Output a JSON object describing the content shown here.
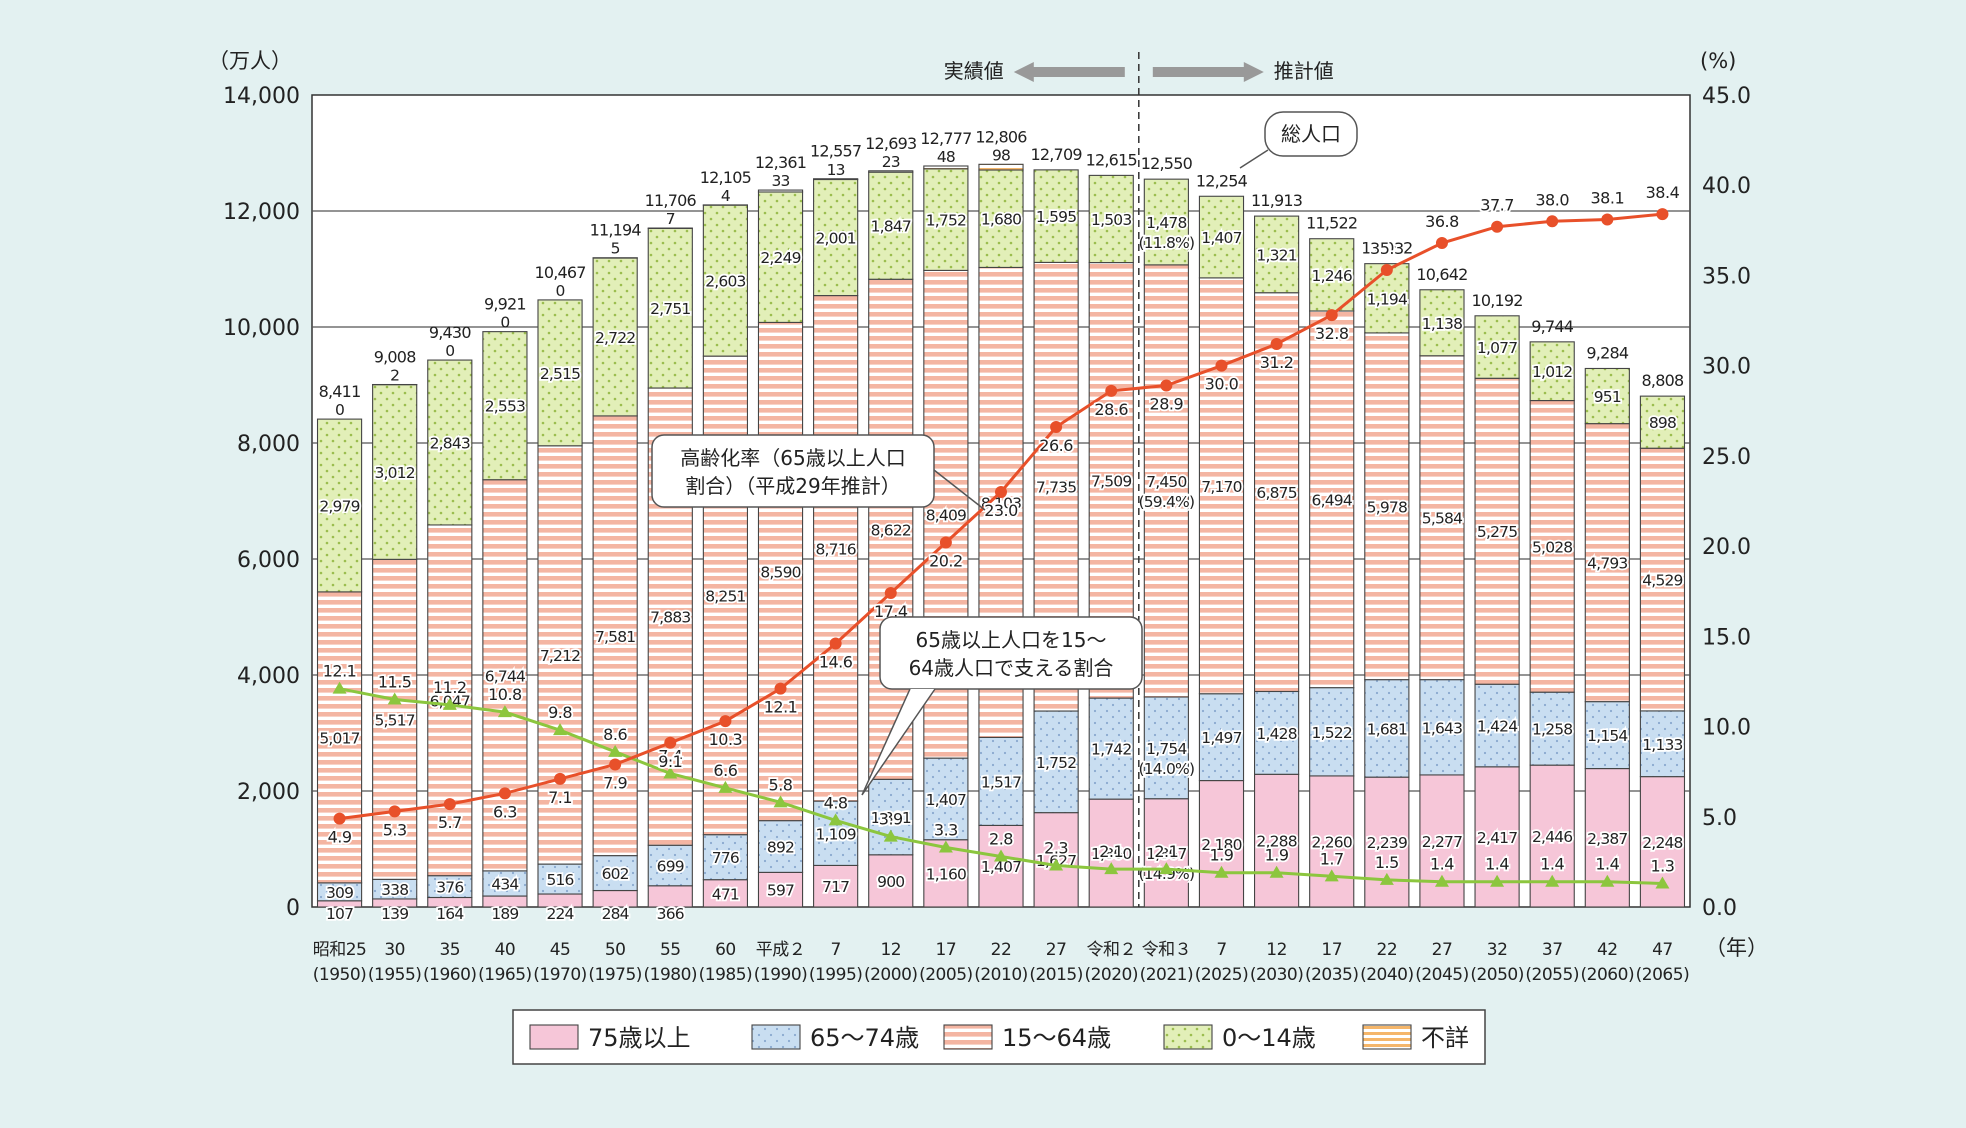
{
  "chart_data": {
    "type": "bar",
    "stacked": true,
    "title": "",
    "y_left": {
      "unit": "（万人）",
      "min": 0,
      "max": 14000,
      "ticks": [
        "0",
        "2,000",
        "4,000",
        "6,000",
        "8,000",
        "10,000",
        "12,000",
        "14,000"
      ]
    },
    "y_right": {
      "unit": "(%)",
      "min": 0,
      "max": 45,
      "ticks": [
        "0.0",
        "5.0",
        "10.0",
        "15.0",
        "20.0",
        "25.0",
        "30.0",
        "35.0",
        "40.0",
        "45.0"
      ]
    },
    "x_unit": "（年）",
    "categories": [
      {
        "era": "昭和25",
        "year": "(1950)"
      },
      {
        "era": "30",
        "year": "(1955)"
      },
      {
        "era": "35",
        "year": "(1960)"
      },
      {
        "era": "40",
        "year": "(1965)"
      },
      {
        "era": "45",
        "year": "(1970)"
      },
      {
        "era": "50",
        "year": "(1975)"
      },
      {
        "era": "55",
        "year": "(1980)"
      },
      {
        "era": "60",
        "year": "(1985)"
      },
      {
        "era": "平成２",
        "year": "(1990)"
      },
      {
        "era": "7",
        "year": "(1995)"
      },
      {
        "era": "12",
        "year": "(2000)"
      },
      {
        "era": "17",
        "year": "(2005)"
      },
      {
        "era": "22",
        "year": "(2010)"
      },
      {
        "era": "27",
        "year": "(2015)"
      },
      {
        "era": "令和２",
        "year": "(2020)"
      },
      {
        "era": "令和３",
        "year": "(2021)"
      },
      {
        "era": "7",
        "year": "(2025)"
      },
      {
        "era": "12",
        "year": "(2030)"
      },
      {
        "era": "17",
        "year": "(2035)"
      },
      {
        "era": "22",
        "year": "(2040)"
      },
      {
        "era": "27",
        "year": "(2045)"
      },
      {
        "era": "32",
        "year": "(2050)"
      },
      {
        "era": "37",
        "year": "(2055)"
      },
      {
        "era": "42",
        "year": "(2060)"
      },
      {
        "era": "47",
        "year": "(2065)"
      }
    ],
    "series": [
      {
        "key": "s75",
        "name": "75歳以上",
        "color": "#f6c6d8",
        "values": [
          107,
          139,
          164,
          189,
          224,
          284,
          366,
          471,
          597,
          717,
          900,
          1160,
          1407,
          1627,
          1860,
          1867,
          2180,
          2288,
          2260,
          2239,
          2277,
          2417,
          2446,
          2387,
          2248
        ],
        "labels": [
          "107",
          "139",
          "164",
          "189",
          "224",
          "284",
          "366",
          "471",
          "597",
          "717",
          "900",
          "1,160",
          "1,407",
          "1,627",
          "1,860",
          "1,867",
          "2,180",
          "2,288",
          "2,260",
          "2,239",
          "2,277",
          "2,417",
          "2,446",
          "2,387",
          "2,248"
        ],
        "sublabels": {
          "15": "(14.9%)"
        }
      },
      {
        "key": "s65",
        "name": "65～74歳",
        "color": "#c9def1",
        "values": [
          309,
          338,
          376,
          434,
          516,
          602,
          699,
          776,
          892,
          1109,
          1301,
          1407,
          1517,
          1752,
          1742,
          1754,
          1497,
          1428,
          1522,
          1681,
          1643,
          1424,
          1258,
          1154,
          1133
        ],
        "labels": [
          "309",
          "338",
          "376",
          "434",
          "516",
          "602",
          "699",
          "776",
          "892",
          "1,109",
          "1,301",
          "1,407",
          "1,517",
          "1,752",
          "1,742",
          "1,754",
          "1,497",
          "1,428",
          "1,522",
          "1,681",
          "1,643",
          "1,424",
          "1,258",
          "1,154",
          "1,133"
        ],
        "sublabels": {
          "15": "(14.0%)"
        }
      },
      {
        "key": "s15",
        "name": "15～64歳",
        "color": "#f4b5a2",
        "values": [
          5017,
          5517,
          6047,
          6744,
          7212,
          7581,
          7883,
          8251,
          8590,
          8716,
          8622,
          8409,
          8103,
          7735,
          7509,
          7450,
          7170,
          6875,
          6494,
          5978,
          5584,
          5275,
          5028,
          4793,
          4529
        ],
        "labels": [
          "5,017",
          "5,517",
          "6,047",
          "6,744",
          "7,212",
          "7,581",
          "7,883",
          "8,251",
          "8,590",
          "8,716",
          "8,622",
          "8,409",
          "8,103",
          "7,735",
          "7,509",
          "7,450",
          "7,170",
          "6,875",
          "6,494",
          "5,978",
          "5,584",
          "5,275",
          "5,028",
          "4,793",
          "4,529"
        ],
        "sublabels": {
          "15": "(59.4%)"
        }
      },
      {
        "key": "s0",
        "name": "0～14歳",
        "color": "#e2efb8",
        "values": [
          2979,
          3012,
          2843,
          2553,
          2515,
          2722,
          2751,
          2603,
          2249,
          2001,
          1847,
          1752,
          1680,
          1595,
          1503,
          1478,
          1407,
          1321,
          1246,
          1194,
          1138,
          1077,
          1012,
          951,
          898
        ],
        "labels": [
          "2,979",
          "3,012",
          "2,843",
          "2,553",
          "2,515",
          "2,722",
          "2,751",
          "2,603",
          "2,249",
          "2,001",
          "1,847",
          "1,752",
          "1,680",
          "1,595",
          "1,503",
          "1,478",
          "1,407",
          "1,321",
          "1,246",
          "1,194",
          "1,138",
          "1,077",
          "1,012",
          "951",
          "898"
        ],
        "sublabels": {
          "15": "(11.8%)"
        }
      },
      {
        "key": "un",
        "name": "不詳",
        "color": "#fde3b0",
        "values": [
          0,
          2,
          0,
          0,
          0,
          5,
          7,
          4,
          33,
          13,
          23,
          48,
          98,
          0,
          0,
          0,
          0,
          0,
          0,
          0,
          0,
          0,
          0,
          0,
          0
        ],
        "labels": [
          "0",
          "2",
          "0",
          "0",
          "0",
          "5",
          "7",
          "4",
          "33",
          "13",
          "23",
          "48",
          "98",
          "",
          "",
          "",
          "",
          "",
          "",
          "",
          "",
          "",
          "",
          "",
          ""
        ]
      }
    ],
    "totals": [
      "8,411",
      "9,008",
      "9,430",
      "9,921",
      "10,467",
      "11,194",
      "11,706",
      "12,105",
      "12,361",
      "12,557",
      "12,693",
      "12,777",
      "12,806",
      "12,709",
      "12,615",
      "12,550",
      "12,254",
      "11,913",
      "11,522",
      "11,092",
      "10,642",
      "10,192",
      "9,744",
      "9,284",
      "8,808"
    ],
    "total_values": [
      8411,
      9008,
      9430,
      9921,
      10467,
      11194,
      11706,
      12105,
      12361,
      12557,
      12693,
      12777,
      12806,
      12709,
      12615,
      12550,
      12254,
      11913,
      11522,
      11092,
      10642,
      10192,
      9744,
      9284,
      8808
    ],
    "lines": [
      {
        "key": "aging",
        "name": "高齢化率（65歳以上人口割合）（平成29年推計）",
        "color": "#e8502a",
        "values": [
          4.9,
          5.3,
          5.7,
          6.3,
          7.1,
          7.9,
          9.1,
          10.3,
          12.1,
          14.6,
          17.4,
          20.2,
          23.0,
          26.6,
          28.6,
          28.9,
          30.0,
          31.2,
          32.8,
          35.3,
          36.8,
          37.7,
          38.0,
          38.1,
          38.4
        ],
        "labels": [
          "4.9",
          "5.3",
          "5.7",
          "6.3",
          "7.1",
          "7.9",
          "9.1",
          "10.3",
          "12.1",
          "14.6",
          "17.4",
          "20.2",
          "23.0",
          "26.6",
          "28.6",
          "28.9",
          "30.0",
          "31.2",
          "32.8",
          "35.3",
          "36.8",
          "37.7",
          "38.0",
          "38.1",
          "38.4"
        ]
      },
      {
        "key": "support",
        "name": "65歳以上人口を15～64歳人口で支える割合",
        "color": "#8cc63e",
        "values": [
          12.1,
          11.5,
          11.2,
          10.8,
          9.8,
          8.6,
          7.4,
          6.6,
          5.8,
          4.8,
          3.9,
          3.3,
          2.8,
          2.3,
          2.1,
          2.1,
          1.9,
          1.9,
          1.7,
          1.5,
          1.4,
          1.4,
          1.4,
          1.4,
          1.3
        ],
        "labels": [
          "12.1",
          "11.5",
          "11.2",
          "10.8",
          "9.8",
          "8.6",
          "7.4",
          "6.6",
          "5.8",
          "4.8",
          "3.9",
          "3.3",
          "2.8",
          "2.3",
          "2.1",
          "2.1",
          "1.9",
          "1.9",
          "1.7",
          "1.5",
          "1.4",
          "1.4",
          "1.4",
          "1.4",
          "1.3"
        ]
      }
    ],
    "annotations": {
      "actual": "実績値",
      "estimate": "推計値",
      "total_population": "総人口",
      "aging_rate": [
        "高齢化率（65歳以上人口",
        "割合）（平成29年推計）"
      ],
      "support_ratio": [
        "65歳以上人口を15～",
        "64歳人口で支える割合"
      ]
    },
    "legend_placement": "bottom-center"
  }
}
